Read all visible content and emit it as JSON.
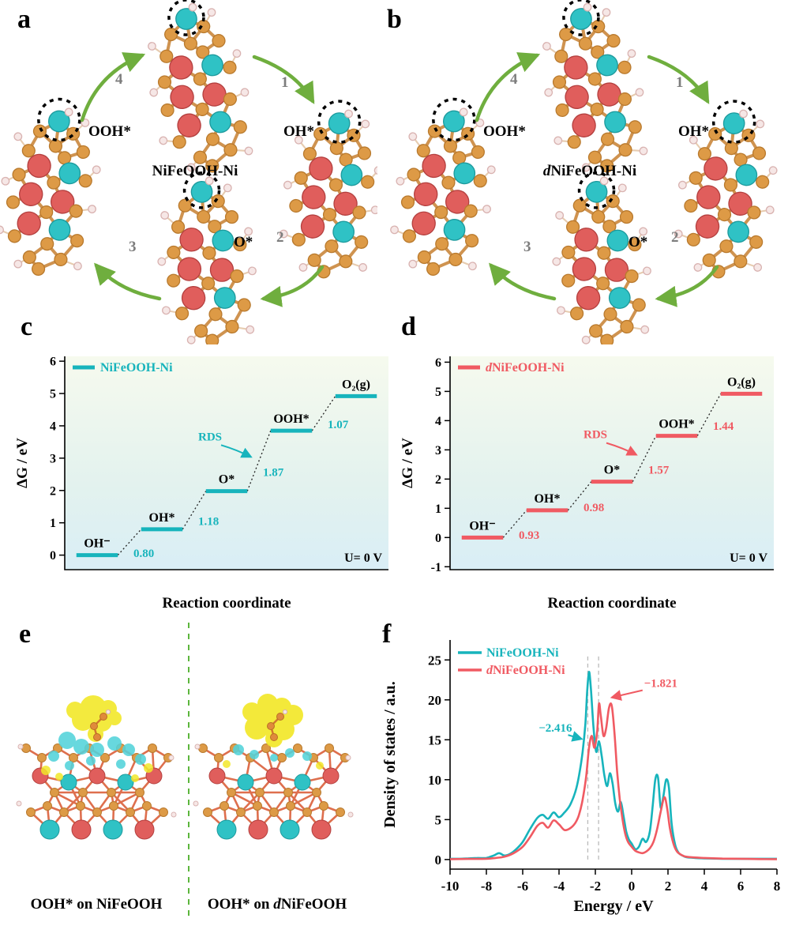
{
  "panels": {
    "a": {
      "label": "a",
      "center": {
        "prefix": "",
        "name": "NiFeOOH-Ni"
      },
      "species": {
        "left": "OOH*",
        "right": "OH*",
        "bottom": "O*"
      },
      "step_numbers": [
        "1",
        "2",
        "3",
        "4"
      ]
    },
    "b": {
      "label": "b",
      "center": {
        "prefix": "d",
        "name": "NiFeOOH-Ni"
      },
      "species": {
        "left": "OOH*",
        "right": "OH*",
        "bottom": "O*"
      },
      "step_numbers": [
        "1",
        "2",
        "3",
        "4"
      ]
    },
    "c": {
      "label": "c"
    },
    "d": {
      "label": "d"
    },
    "e": {
      "label": "e",
      "captions": {
        "left": "OOH* on NiFeOOH",
        "right_pre": "OOH* on ",
        "right_d": "d",
        "right_rest": "NiFeOOH"
      }
    },
    "f": {
      "label": "f"
    }
  },
  "chart_data": [
    {
      "id": "c",
      "type": "step-line",
      "legend": {
        "prefix": "",
        "rest": "NiFeOOH-Ni"
      },
      "color": "#17b4bc",
      "xlabel": "Reaction coordinate",
      "ylabel": "ΔG / eV",
      "ylim": [
        -0.45,
        6.15
      ],
      "yticks": [
        0,
        1,
        2,
        3,
        4,
        5,
        6
      ],
      "steps": [
        {
          "label": "OH⁻",
          "G": 0
        },
        {
          "label": "OH*",
          "G": 0.8
        },
        {
          "label": "O*",
          "G": 1.98
        },
        {
          "label": "OOH*",
          "G": 3.85
        },
        {
          "label": "O₂(g)",
          "G": 4.92
        }
      ],
      "deltas": [
        "0.80",
        "1.18",
        "1.87",
        "1.07"
      ],
      "rds_index": 2,
      "rds_label": "RDS",
      "potential_label": "U= 0 V"
    },
    {
      "id": "d",
      "type": "step-line",
      "legend": {
        "prefix": "d",
        "rest": "NiFeOOH-Ni"
      },
      "color": "#f05a62",
      "xlabel": "Reaction coordinate",
      "ylabel": "ΔG / eV",
      "ylim": [
        -1.1,
        6.2
      ],
      "yticks": [
        -1,
        0,
        1,
        2,
        3,
        4,
        5,
        6
      ],
      "steps": [
        {
          "label": "OH⁻",
          "G": 0
        },
        {
          "label": "OH*",
          "G": 0.93
        },
        {
          "label": "O*",
          "G": 1.91
        },
        {
          "label": "OOH*",
          "G": 3.48
        },
        {
          "label": "O₂(g)",
          "G": 4.92
        }
      ],
      "deltas": [
        "0.93",
        "0.98",
        "1.57",
        "1.44"
      ],
      "rds_index": 2,
      "rds_label": "RDS",
      "potential_label": "U= 0 V"
    },
    {
      "id": "f",
      "type": "line",
      "xlabel": "Energy / eV",
      "ylabel": "Density of states / a.u.",
      "xlim": [
        -10,
        8
      ],
      "xticks": [
        -10,
        -8,
        -6,
        -4,
        -2,
        0,
        2,
        4,
        6,
        8
      ],
      "ylim": [
        0,
        25
      ],
      "yticks": [
        0,
        5,
        10,
        15,
        20,
        25
      ],
      "vlines": [
        -2.416,
        -1.821
      ],
      "series": [
        {
          "prefix": "",
          "name": "NiFeOOH-Ni",
          "color": "#17b4bc",
          "points": [
            [
              -10,
              0.1
            ],
            [
              -9.5,
              0.1
            ],
            [
              -9,
              0.15
            ],
            [
              -8.5,
              0.2
            ],
            [
              -8,
              0.2
            ],
            [
              -7.6,
              0.5
            ],
            [
              -7.3,
              0.8
            ],
            [
              -7,
              0.5
            ],
            [
              -6.7,
              0.7
            ],
            [
              -6.4,
              1.2
            ],
            [
              -6,
              2.2
            ],
            [
              -5.6,
              3.8
            ],
            [
              -5.2,
              5.2
            ],
            [
              -4.9,
              5.6
            ],
            [
              -4.6,
              5.1
            ],
            [
              -4.3,
              5.9
            ],
            [
              -4,
              5.3
            ],
            [
              -3.7,
              5.9
            ],
            [
              -3.4,
              6.8
            ],
            [
              -3.1,
              8.5
            ],
            [
              -2.9,
              10.5
            ],
            [
              -2.7,
              13.5
            ],
            [
              -2.55,
              17
            ],
            [
              -2.45,
              21
            ],
            [
              -2.35,
              23.5
            ],
            [
              -2.25,
              21.5
            ],
            [
              -2.1,
              16.5
            ],
            [
              -1.95,
              13.5
            ],
            [
              -1.8,
              14.8
            ],
            [
              -1.65,
              13
            ],
            [
              -1.5,
              10.5
            ],
            [
              -1.35,
              9.2
            ],
            [
              -1.2,
              10.8
            ],
            [
              -1.05,
              9.5
            ],
            [
              -0.9,
              7
            ],
            [
              -0.75,
              6
            ],
            [
              -0.6,
              7.2
            ],
            [
              -0.45,
              5.5
            ],
            [
              -0.3,
              3.5
            ],
            [
              -0.15,
              2.5
            ],
            [
              0,
              2
            ],
            [
              0.2,
              1.3
            ],
            [
              0.4,
              1.6
            ],
            [
              0.6,
              2.6
            ],
            [
              0.8,
              2.2
            ],
            [
              1,
              3.5
            ],
            [
              1.15,
              6.5
            ],
            [
              1.3,
              10
            ],
            [
              1.45,
              10.3
            ],
            [
              1.6,
              6.5
            ],
            [
              1.75,
              8
            ],
            [
              1.9,
              10
            ],
            [
              2.05,
              9
            ],
            [
              2.2,
              4.5
            ],
            [
              2.4,
              1.8
            ],
            [
              2.6,
              0.8
            ],
            [
              2.8,
              0.5
            ],
            [
              3,
              0.3
            ],
            [
              3.5,
              0.2
            ],
            [
              4,
              0.15
            ],
            [
              5,
              0.1
            ],
            [
              6,
              0.1
            ],
            [
              7,
              0.1
            ],
            [
              8,
              0.1
            ]
          ]
        },
        {
          "prefix": "d",
          "name": "NiFeOOH-Ni",
          "color": "#f05a62",
          "points": [
            [
              -10,
              0.05
            ],
            [
              -9,
              0.08
            ],
            [
              -8,
              0.1
            ],
            [
              -7.5,
              0.2
            ],
            [
              -7,
              0.35
            ],
            [
              -6.5,
              0.8
            ],
            [
              -6,
              1.6
            ],
            [
              -5.6,
              2.8
            ],
            [
              -5.2,
              4.2
            ],
            [
              -4.9,
              4.6
            ],
            [
              -4.6,
              4.0
            ],
            [
              -4.3,
              4.9
            ],
            [
              -4,
              4.4
            ],
            [
              -3.7,
              3.7
            ],
            [
              -3.4,
              3.9
            ],
            [
              -3.1,
              4.6
            ],
            [
              -2.9,
              5.6
            ],
            [
              -2.7,
              7.5
            ],
            [
              -2.5,
              10.5
            ],
            [
              -2.35,
              14
            ],
            [
              -2.2,
              15.5
            ],
            [
              -2.05,
              14
            ],
            [
              -1.9,
              16
            ],
            [
              -1.8,
              19.5
            ],
            [
              -1.7,
              18
            ],
            [
              -1.55,
              15.5
            ],
            [
              -1.4,
              16.5
            ],
            [
              -1.25,
              19
            ],
            [
              -1.1,
              19.3
            ],
            [
              -0.95,
              16
            ],
            [
              -0.8,
              11
            ],
            [
              -0.65,
              7.5
            ],
            [
              -0.5,
              5
            ],
            [
              -0.35,
              3.2
            ],
            [
              -0.2,
              2.2
            ],
            [
              0,
              1.6
            ],
            [
              0.2,
              1.1
            ],
            [
              0.4,
              0.9
            ],
            [
              0.6,
              0.8
            ],
            [
              0.8,
              1
            ],
            [
              1,
              1.4
            ],
            [
              1.2,
              2.2
            ],
            [
              1.4,
              3.8
            ],
            [
              1.6,
              6
            ],
            [
              1.8,
              7.8
            ],
            [
              1.95,
              6.5
            ],
            [
              2.1,
              4
            ],
            [
              2.3,
              2
            ],
            [
              2.5,
              1
            ],
            [
              2.8,
              0.5
            ],
            [
              3,
              0.35
            ],
            [
              3.5,
              0.25
            ],
            [
              4,
              0.2
            ],
            [
              5,
              0.12
            ],
            [
              6,
              0.1
            ],
            [
              7,
              0.06
            ],
            [
              8,
              0.05
            ]
          ]
        }
      ],
      "annotations": [
        {
          "text": "−2.416",
          "color": "#17b4bc"
        },
        {
          "text": "−1.821",
          "color": "#f05a62"
        }
      ]
    }
  ]
}
